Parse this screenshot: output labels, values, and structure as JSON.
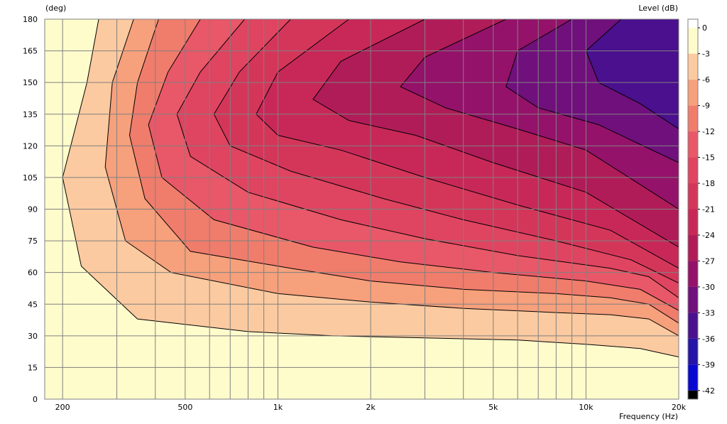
{
  "chart_data": {
    "type": "heatmap",
    "subtype": "polar-map-contour",
    "y_unit_label": "(deg)",
    "x_axis_label": "Frequency  (Hz)",
    "colorbar_label": "Level  (dB)",
    "x_scale": "log",
    "xlim": [
      175,
      20000
    ],
    "ylim": [
      0,
      180
    ],
    "x_ticks": [
      {
        "value": 200,
        "label": "200"
      },
      {
        "value": 500,
        "label": "500"
      },
      {
        "value": 1000,
        "label": "1k"
      },
      {
        "value": 2000,
        "label": "2k"
      },
      {
        "value": 5000,
        "label": "5k"
      },
      {
        "value": 10000,
        "label": "10k"
      },
      {
        "value": 20000,
        "label": "20k"
      }
    ],
    "y_ticks": [
      0,
      15,
      30,
      45,
      60,
      75,
      90,
      105,
      120,
      135,
      150,
      165,
      180
    ],
    "grid": true,
    "colorbar_ticks": [
      0,
      -3,
      -6,
      -9,
      -12,
      -15,
      -18,
      -21,
      -24,
      -27,
      -30,
      -33,
      -36,
      -39,
      -42
    ],
    "colorbar_range": [
      -43,
      1
    ],
    "levels": [
      {
        "from": -3,
        "color": "#FFFCCC"
      },
      {
        "from": -6,
        "color": "#FCCAA0"
      },
      {
        "from": -9,
        "color": "#F6A07C"
      },
      {
        "from": -12,
        "color": "#F07C6C"
      },
      {
        "from": -15,
        "color": "#E85868"
      },
      {
        "from": -18,
        "color": "#DF4460"
      },
      {
        "from": -21,
        "color": "#D4365A"
      },
      {
        "from": -24,
        "color": "#C82858"
      },
      {
        "from": -27,
        "color": "#B01C58"
      },
      {
        "from": -30,
        "color": "#94126A"
      },
      {
        "from": -33,
        "color": "#70107C"
      },
      {
        "from": -36,
        "color": "#4A108E"
      },
      {
        "from": -39,
        "color": "#2414A8"
      },
      {
        "from": -42,
        "color": "#0808D0"
      },
      {
        "from": -45,
        "color": "#000000"
      }
    ],
    "contour_boundaries": [
      {
        "level": -3,
        "points": [
          [
            262,
            180
          ],
          [
            240,
            150
          ],
          [
            200,
            105
          ],
          [
            230,
            63
          ],
          [
            350,
            38
          ],
          [
            800,
            32
          ],
          [
            1500,
            30
          ],
          [
            3000,
            29
          ],
          [
            6000,
            28
          ],
          [
            10000,
            26
          ],
          [
            15000,
            24
          ],
          [
            20000,
            20
          ]
        ]
      },
      {
        "level": -6,
        "points": [
          [
            340,
            180
          ],
          [
            290,
            150
          ],
          [
            275,
            110
          ],
          [
            320,
            75
          ],
          [
            450,
            60
          ],
          [
            1000,
            50
          ],
          [
            2000,
            46
          ],
          [
            4000,
            43
          ],
          [
            8000,
            41
          ],
          [
            12000,
            40
          ],
          [
            16000,
            38
          ],
          [
            20000,
            30
          ]
        ]
      },
      {
        "level": -9,
        "points": [
          [
            410,
            180
          ],
          [
            350,
            150
          ],
          [
            330,
            125
          ],
          [
            370,
            95
          ],
          [
            520,
            70
          ],
          [
            1100,
            62
          ],
          [
            2000,
            56
          ],
          [
            4000,
            52
          ],
          [
            8000,
            50
          ],
          [
            12000,
            48
          ],
          [
            16000,
            45
          ],
          [
            20000,
            36
          ]
        ]
      },
      {
        "level": -12,
        "points": [
          [
            560,
            180
          ],
          [
            440,
            155
          ],
          [
            380,
            130
          ],
          [
            420,
            105
          ],
          [
            620,
            85
          ],
          [
            1300,
            72
          ],
          [
            2500,
            65
          ],
          [
            5000,
            60
          ],
          [
            10000,
            56
          ],
          [
            15000,
            52
          ],
          [
            20000,
            42
          ]
        ]
      },
      {
        "level": -15,
        "points": [
          [
            780,
            180
          ],
          [
            560,
            155
          ],
          [
            470,
            135
          ],
          [
            520,
            115
          ],
          [
            800,
            98
          ],
          [
            1600,
            85
          ],
          [
            3000,
            76
          ],
          [
            6000,
            68
          ],
          [
            12000,
            62
          ],
          [
            16000,
            58
          ],
          [
            20000,
            48
          ]
        ]
      },
      {
        "level": -18,
        "points": [
          [
            1100,
            180
          ],
          [
            750,
            155
          ],
          [
            620,
            135
          ],
          [
            700,
            120
          ],
          [
            1100,
            108
          ],
          [
            2200,
            95
          ],
          [
            4000,
            85
          ],
          [
            8000,
            75
          ],
          [
            14000,
            66
          ],
          [
            20000,
            55
          ]
        ]
      },
      {
        "level": -21,
        "points": [
          [
            1700,
            180
          ],
          [
            1000,
            155
          ],
          [
            850,
            135
          ],
          [
            1000,
            125
          ],
          [
            1600,
            118
          ],
          [
            3000,
            105
          ],
          [
            6000,
            92
          ],
          [
            12000,
            80
          ],
          [
            20000,
            62
          ]
        ]
      },
      {
        "level": -24,
        "points": [
          [
            3000,
            180
          ],
          [
            1600,
            160
          ],
          [
            1300,
            142
          ],
          [
            1700,
            132
          ],
          [
            2800,
            125
          ],
          [
            5000,
            112
          ],
          [
            10000,
            98
          ],
          [
            20000,
            72
          ]
        ]
      },
      {
        "level": -27,
        "points": [
          [
            5500,
            180
          ],
          [
            3000,
            162
          ],
          [
            2500,
            148
          ],
          [
            3500,
            138
          ],
          [
            6000,
            128
          ],
          [
            10000,
            118
          ],
          [
            20000,
            90
          ]
        ]
      },
      {
        "level": -30,
        "points": [
          [
            9000,
            180
          ],
          [
            6000,
            165
          ],
          [
            5500,
            148
          ],
          [
            7000,
            138
          ],
          [
            11000,
            130
          ],
          [
            20000,
            112
          ]
        ]
      },
      {
        "level": -33,
        "points": [
          [
            13000,
            180
          ],
          [
            10000,
            165
          ],
          [
            11000,
            150
          ],
          [
            15000,
            140
          ],
          [
            20000,
            128
          ]
        ]
      }
    ]
  }
}
